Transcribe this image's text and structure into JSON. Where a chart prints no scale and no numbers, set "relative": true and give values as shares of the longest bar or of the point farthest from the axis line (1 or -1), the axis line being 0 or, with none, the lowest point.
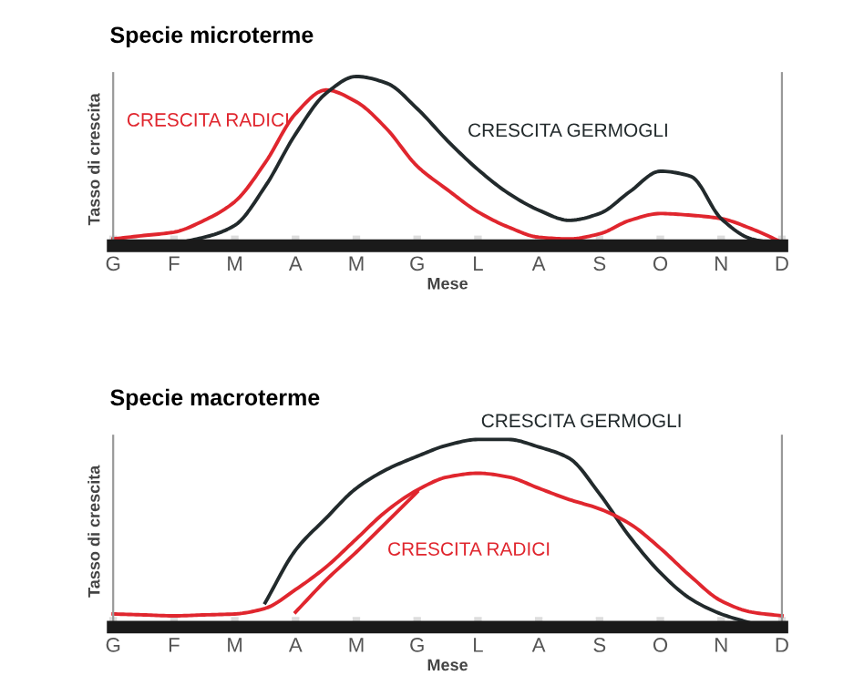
{
  "chart_data": [
    {
      "type": "line",
      "title": "Specie microterme",
      "xlabel": "Mese",
      "ylabel": "Tasso di crescita",
      "relative": true,
      "categories": [
        "G",
        null,
        "F",
        null,
        "M",
        null,
        "A",
        null,
        "M",
        null,
        "G",
        null,
        "L",
        null,
        "A",
        null,
        "S",
        null,
        "O",
        null,
        "N",
        null,
        "D"
      ],
      "grid": false,
      "legend": false,
      "marker": "none",
      "line_style": "solid",
      "series": [
        {
          "name": "CRESCITA RADICI",
          "color": "#e0262e",
          "values": [
            0.04,
            0.06,
            0.08,
            0.15,
            0.26,
            0.49,
            0.78,
            0.92,
            0.85,
            0.69,
            0.47,
            0.33,
            0.2,
            0.11,
            0.05,
            0.04,
            0.07,
            0.15,
            0.19,
            0.18,
            0.16,
            0.1,
            0.02
          ]
        },
        {
          "name": "CRESCITA GERMOGLI",
          "color": "#222a2c",
          "values": [
            0.02,
            0.02,
            0.02,
            0.05,
            0.12,
            0.35,
            0.66,
            0.9,
            1.0,
            0.96,
            0.81,
            0.62,
            0.45,
            0.31,
            0.21,
            0.15,
            0.19,
            0.32,
            0.44,
            0.41,
            0.16,
            0.04,
            0.01
          ]
        }
      ]
    },
    {
      "type": "line",
      "title": "Specie macroterme",
      "xlabel": "Mese",
      "ylabel": "Tasso di crescita",
      "relative": true,
      "categories": [
        "G",
        null,
        "F",
        null,
        "M",
        null,
        "A",
        null,
        "M",
        null,
        "G",
        null,
        "L",
        null,
        "A",
        null,
        "S",
        null,
        "O",
        null,
        "N",
        null,
        "D"
      ],
      "grid": false,
      "legend": false,
      "marker": "none",
      "line_style": "solid",
      "series": [
        {
          "name": "CRESCITA GERMOGLI",
          "color": "#222a2c",
          "values": [
            null,
            null,
            null,
            null,
            null,
            0.13,
            0.41,
            0.58,
            0.74,
            0.84,
            0.91,
            0.97,
            1.0,
            1.0,
            0.96,
            0.9,
            0.71,
            0.48,
            0.29,
            0.15,
            0.07,
            0.02,
            null
          ]
        },
        {
          "name": "CRESCITA RADICI",
          "color": "#e0262e",
          "values": [
            0.07,
            0.065,
            0.06,
            0.065,
            0.07,
            0.1,
            0.2,
            0.32,
            0.47,
            0.62,
            0.73,
            0.8,
            0.82,
            0.8,
            0.74,
            0.68,
            0.63,
            0.55,
            0.42,
            0.27,
            0.14,
            0.08,
            0.06
          ]
        },
        {
          "color": "#e0262e",
          "values": [
            null,
            null,
            null,
            null,
            null,
            null,
            0.08,
            0.25,
            0.4,
            0.56,
            0.72,
            null,
            null,
            null,
            null,
            null,
            null,
            null,
            null,
            null,
            null,
            null,
            null
          ]
        }
      ]
    }
  ]
}
